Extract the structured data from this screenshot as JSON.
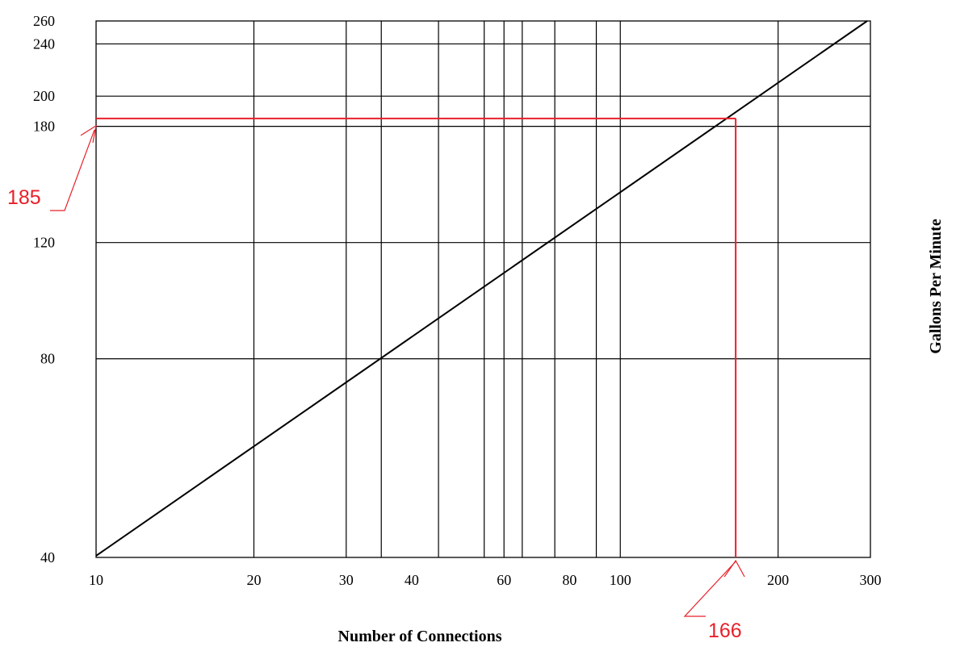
{
  "chart_data": {
    "type": "line",
    "xlabel": "Number of Connections",
    "ylabel": "Gallons Per Minute",
    "x_ticks": [
      {
        "value": 10,
        "label": "10"
      },
      {
        "value": 20,
        "label": "20"
      },
      {
        "value": 30,
        "label": "30"
      },
      {
        "value": 40,
        "label": "40"
      },
      {
        "value": 60,
        "label": "60"
      },
      {
        "value": 80,
        "label": "80"
      },
      {
        "value": 100,
        "label": "100"
      },
      {
        "value": 200,
        "label": "200"
      },
      {
        "value": 300,
        "label": "300"
      }
    ],
    "x_gridlines": [
      20,
      30,
      35,
      45,
      55,
      60,
      65,
      75,
      90,
      100,
      200
    ],
    "y_ticks": [
      {
        "value": 40,
        "label": "40"
      },
      {
        "value": 80,
        "label": "80"
      },
      {
        "value": 120,
        "label": "120"
      },
      {
        "value": 180,
        "label": "180"
      },
      {
        "value": 200,
        "label": "200"
      },
      {
        "value": 240,
        "label": "240"
      },
      {
        "value": 260,
        "label": "260"
      }
    ],
    "y_gridlines": [
      80,
      120,
      180,
      200,
      240
    ],
    "xlim": [
      10,
      300
    ],
    "ylim": [
      40,
      260
    ],
    "grid": true,
    "series": [
      {
        "values": [
          {
            "x": 10,
            "y": 40
          },
          {
            "x": 300,
            "y": 260
          }
        ],
        "color": "#000000"
      }
    ],
    "annotation": {
      "x": 166,
      "y": 185,
      "x_label": "166",
      "y_label": "185",
      "color": "#e8202a"
    }
  }
}
